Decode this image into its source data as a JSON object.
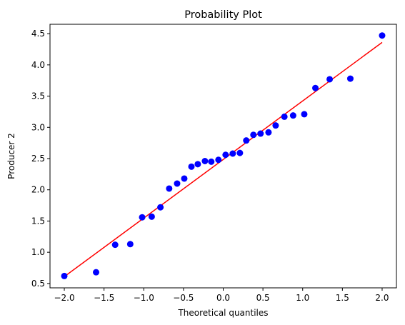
{
  "chart_data": {
    "type": "scatter",
    "title": "Probability Plot",
    "xlabel": "Theoretical quantiles",
    "ylabel": "Producer 2",
    "xlim": [
      -2.18,
      2.18
    ],
    "ylim": [
      0.43,
      4.65
    ],
    "grid": false,
    "x_ticks": [
      -2.0,
      -1.5,
      -1.0,
      -0.5,
      0.0,
      0.5,
      1.0,
      1.5,
      2.0
    ],
    "x_tick_labels": [
      "−2.0",
      "−1.5",
      "−1.0",
      "−0.5",
      "0.0",
      "0.5",
      "1.0",
      "1.5",
      "2.0"
    ],
    "y_ticks": [
      0.5,
      1.0,
      1.5,
      2.0,
      2.5,
      3.0,
      3.5,
      4.0,
      4.5
    ],
    "y_tick_labels": [
      "0.5",
      "1.0",
      "1.5",
      "2.0",
      "2.5",
      "3.0",
      "3.5",
      "4.0",
      "4.5"
    ],
    "series": [
      {
        "kind": "scatter",
        "color": "#0000ff",
        "points": [
          [
            -2.0,
            0.62
          ],
          [
            -1.6,
            0.68
          ],
          [
            -1.36,
            1.12
          ],
          [
            -1.17,
            1.13
          ],
          [
            -1.02,
            1.56
          ],
          [
            -0.9,
            1.57
          ],
          [
            -0.79,
            1.72
          ],
          [
            -0.68,
            2.02
          ],
          [
            -0.58,
            2.1
          ],
          [
            -0.49,
            2.18
          ],
          [
            -0.4,
            2.37
          ],
          [
            -0.32,
            2.41
          ],
          [
            -0.23,
            2.46
          ],
          [
            -0.15,
            2.45
          ],
          [
            -0.06,
            2.48
          ],
          [
            0.03,
            2.56
          ],
          [
            0.12,
            2.58
          ],
          [
            0.21,
            2.59
          ],
          [
            0.29,
            2.79
          ],
          [
            0.38,
            2.88
          ],
          [
            0.47,
            2.9
          ],
          [
            0.57,
            2.92
          ],
          [
            0.66,
            3.03
          ],
          [
            0.77,
            3.17
          ],
          [
            0.88,
            3.19
          ],
          [
            1.02,
            3.21
          ],
          [
            1.16,
            3.63
          ],
          [
            1.34,
            3.77
          ],
          [
            1.6,
            3.78
          ],
          [
            2.0,
            4.47
          ]
        ]
      },
      {
        "kind": "line",
        "color": "#ff0000",
        "points": [
          [
            -2.0,
            0.61
          ],
          [
            2.0,
            4.36
          ]
        ]
      }
    ]
  }
}
